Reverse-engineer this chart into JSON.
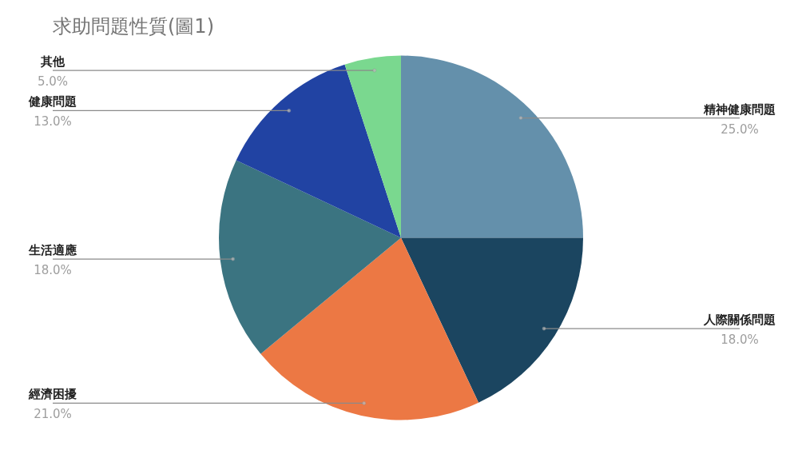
{
  "chart_data": {
    "type": "pie",
    "title": "求助問題性質(圖1)",
    "categories": [
      "精神健康問題",
      "人際關係問題",
      "經濟困擾",
      "生活適應",
      "健康問題",
      "其他"
    ],
    "values": [
      25,
      18,
      21,
      18,
      13,
      5
    ],
    "value_labels": [
      "25.0%",
      "18.0%",
      "21.0%",
      "18.0%",
      "13.0%",
      "5.0%"
    ],
    "colors": [
      "#6490ab",
      "#1b4560",
      "#ec7844",
      "#3b7481",
      "#2143a3",
      "#7ad88f"
    ],
    "legend": false
  }
}
